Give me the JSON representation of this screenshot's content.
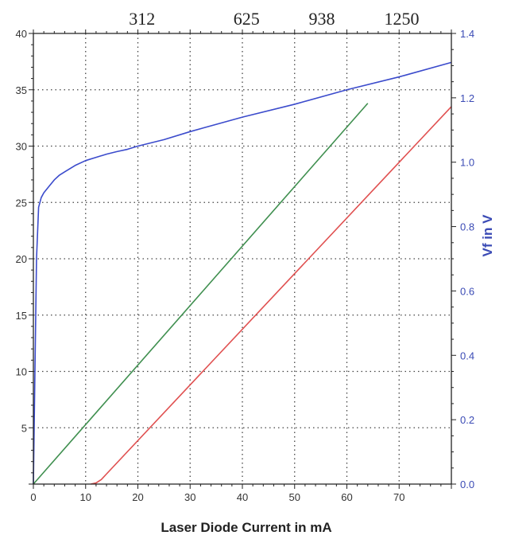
{
  "chart_data": {
    "type": "line",
    "title": "",
    "xlabel": "Laser Diode Current in mA",
    "ylabel": "",
    "y2label": "Vf in V",
    "xlim": [
      0,
      80
    ],
    "ylim": [
      0,
      40
    ],
    "y2lim": [
      0,
      1.4
    ],
    "grid": true,
    "x_ticks": [
      "0",
      "10",
      "20",
      "30",
      "40",
      "50",
      "60",
      "70"
    ],
    "y_ticks": [
      "5",
      "10",
      "15",
      "20",
      "25",
      "30",
      "35",
      "40"
    ],
    "y2_ticks": [
      "0.0",
      "0.2",
      "0.4",
      "0.6",
      "0.8",
      "1.0",
      "1.2",
      "1.4"
    ],
    "top_ticks": [
      {
        "label": "312",
        "x": 20.8
      },
      {
        "label": "625",
        "x": 40.8
      },
      {
        "label": "938",
        "x": 55.2
      },
      {
        "label": "1250",
        "x": 70.5
      }
    ],
    "series": [
      {
        "axis": "y2",
        "color": "#3b4bcc",
        "x": [
          0,
          0.3,
          0.6,
          1.0,
          1.5,
          2,
          3,
          4,
          5,
          6,
          8,
          10,
          12,
          14,
          16,
          18,
          20,
          25,
          30,
          40,
          50,
          60,
          70,
          80
        ],
        "values": [
          0.0,
          0.35,
          0.7,
          0.86,
          0.89,
          0.905,
          0.925,
          0.945,
          0.96,
          0.97,
          0.99,
          1.005,
          1.015,
          1.025,
          1.033,
          1.04,
          1.05,
          1.07,
          1.095,
          1.14,
          1.18,
          1.225,
          1.265,
          1.31
        ]
      },
      {
        "axis": "y",
        "color": "#3f8f4f",
        "x": [
          0,
          64
        ],
        "values": [
          0,
          33.8
        ]
      },
      {
        "axis": "y",
        "color": "#e05050",
        "x": [
          11,
          12,
          13,
          14,
          80
        ],
        "values": [
          0,
          0.1,
          0.4,
          0.9,
          33.5
        ]
      }
    ]
  }
}
